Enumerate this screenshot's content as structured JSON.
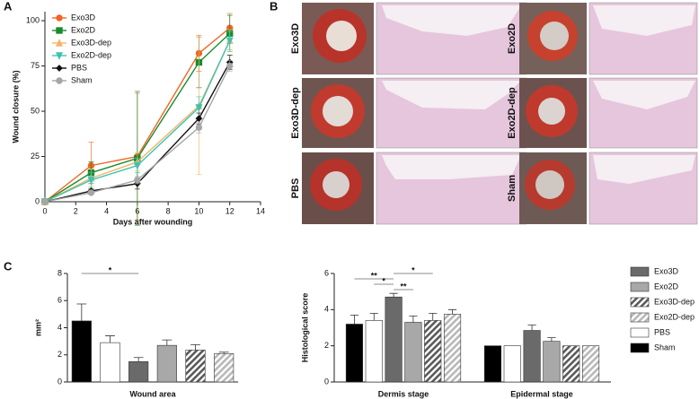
{
  "panel_labels": {
    "a": "A",
    "b": "B",
    "c": "C"
  },
  "figure_b": {
    "panels": [
      {
        "label": "Exo3D"
      },
      {
        "label": "Exo3D-dep"
      },
      {
        "label": "PBS"
      },
      {
        "label": "Exo2D"
      },
      {
        "label": "Exo2D-dep"
      },
      {
        "label": "Sham"
      }
    ]
  },
  "chart_data": [
    {
      "type": "line",
      "xlabel": "Days after wounding",
      "ylabel": "Wound closure (%)",
      "x": [
        0,
        3,
        6,
        10,
        12
      ],
      "xlim": [
        0,
        14
      ],
      "xticks": [
        0,
        2,
        4,
        6,
        8,
        10,
        12,
        14
      ],
      "ylim": [
        0,
        105
      ],
      "yticks": [
        0,
        25,
        50,
        75,
        100
      ],
      "legend": "upper left",
      "series": [
        {
          "name": "Exo3D",
          "color": "#f26522",
          "marker": "circle",
          "values": [
            0,
            20,
            25,
            82,
            96
          ],
          "errors": [
            0,
            13,
            35,
            10,
            8
          ]
        },
        {
          "name": "Exo2D",
          "color": "#1b8a2e",
          "marker": "square",
          "values": [
            0,
            16,
            24,
            77,
            93
          ],
          "errors": [
            0,
            6,
            37,
            14,
            10
          ]
        },
        {
          "name": "Exo3D-dep",
          "color": "#f7b267",
          "marker": "triangle-up",
          "values": [
            0,
            13,
            22,
            53,
            89
          ],
          "errors": [
            0,
            5,
            5,
            38,
            6
          ]
        },
        {
          "name": "Exo2D-dep",
          "color": "#3cc3b0",
          "marker": "triangle-down",
          "values": [
            0,
            12,
            20,
            52,
            89
          ],
          "errors": [
            0,
            4,
            4,
            6,
            5
          ]
        },
        {
          "name": "PBS",
          "color": "#111111",
          "marker": "diamond",
          "values": [
            0,
            6,
            10,
            46,
            77
          ],
          "errors": [
            0,
            1,
            3,
            3,
            4
          ]
        },
        {
          "name": "Sham",
          "color": "#a6a6a6",
          "marker": "circle",
          "values": [
            0,
            5,
            12,
            41,
            75
          ],
          "errors": [
            0,
            1,
            2,
            3,
            3
          ]
        }
      ]
    },
    {
      "type": "bar",
      "ylabel": "mm²",
      "categories": [
        "Wound area"
      ],
      "ylim": [
        0,
        8
      ],
      "yticks": [
        0,
        2,
        4,
        6,
        8
      ],
      "series": [
        {
          "name": "Sham",
          "color": "#000000",
          "values": [
            4.5
          ],
          "errors": [
            1.25
          ]
        },
        {
          "name": "PBS",
          "color": "#ffffff",
          "values": [
            2.9
          ],
          "errors": [
            0.5
          ]
        },
        {
          "name": "Exo3D",
          "color": "#6a6a6a",
          "values": [
            1.5
          ],
          "errors": [
            0.3
          ]
        },
        {
          "name": "Exo2D",
          "color": "#a8a8a8",
          "values": [
            2.7
          ],
          "errors": [
            0.4
          ]
        },
        {
          "name": "Exo3D-dep",
          "color": "#5a5a5a",
          "pattern": "hatch",
          "values": [
            2.35
          ],
          "errors": [
            0.4
          ]
        },
        {
          "name": "Exo2D-dep",
          "color": "#b8b8b8",
          "pattern": "hatch",
          "values": [
            2.1
          ],
          "errors": [
            0.1
          ]
        }
      ],
      "significance": [
        {
          "label": "*",
          "between": [
            "Sham",
            "Exo3D"
          ],
          "category": "Wound area"
        }
      ]
    },
    {
      "type": "bar",
      "ylabel": "Histological score",
      "categories": [
        "Dermis stage",
        "Epidermal stage"
      ],
      "ylim": [
        0,
        6
      ],
      "yticks": [
        0,
        2,
        4,
        6
      ],
      "legend": "right",
      "series": [
        {
          "name": "Exo3D",
          "color": "#6a6a6a",
          "values": [
            4.7,
            2.85
          ],
          "errors": [
            0.2,
            0.3
          ],
          "order": 2
        },
        {
          "name": "Exo2D",
          "color": "#a8a8a8",
          "values": [
            3.3,
            2.25
          ],
          "errors": [
            0.35,
            0.2
          ],
          "order": 3
        },
        {
          "name": "Exo3D-dep",
          "color": "#5a5a5a",
          "pattern": "hatch",
          "values": [
            3.4,
            2.0
          ],
          "errors": [
            0.4,
            0
          ],
          "order": 4
        },
        {
          "name": "Exo2D-dep",
          "color": "#b8b8b8",
          "pattern": "hatch",
          "values": [
            3.75,
            2.0
          ],
          "errors": [
            0.25,
            0
          ],
          "order": 5
        },
        {
          "name": "PBS",
          "color": "#ffffff",
          "values": [
            3.4,
            2.0
          ],
          "errors": [
            0.4,
            0
          ],
          "order": 1
        },
        {
          "name": "Sham",
          "color": "#000000",
          "values": [
            3.2,
            2.0
          ],
          "errors": [
            0.5,
            0
          ],
          "order": 0
        }
      ],
      "significance": [
        {
          "label": "*",
          "between": [
            "Exo3D",
            "Exo3D-dep"
          ],
          "category": "Dermis stage"
        },
        {
          "label": "**",
          "between": [
            "Sham",
            "Exo3D"
          ],
          "category": "Dermis stage"
        },
        {
          "label": "*",
          "between": [
            "PBS",
            "Exo3D"
          ],
          "category": "Dermis stage"
        },
        {
          "label": "**",
          "between": [
            "Exo3D",
            "Exo2D"
          ],
          "category": "Dermis stage"
        }
      ]
    }
  ]
}
